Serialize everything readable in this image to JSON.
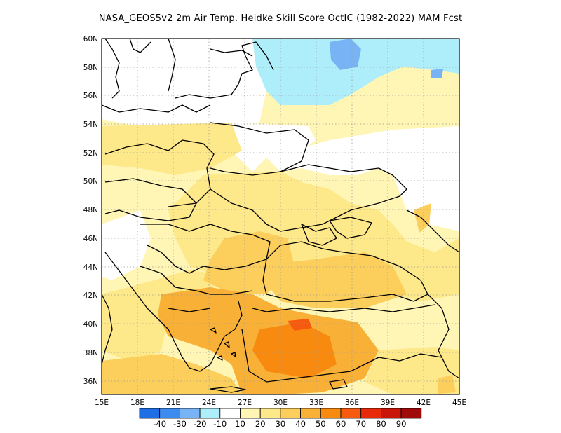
{
  "title": "NASA_GEOS5v2  2m Air Temp. Heidke Skill Score OctIC (1982-2022) MAM Fcst",
  "map": {
    "lon_ticks": [
      "15E",
      "18E",
      "21E",
      "24E",
      "27E",
      "30E",
      "33E",
      "36E",
      "39E",
      "42E",
      "45E"
    ],
    "lat_ticks": [
      "36N",
      "38N",
      "40N",
      "42N",
      "44N",
      "46N",
      "48N",
      "50N",
      "52N",
      "54N",
      "56N",
      "58N",
      "60N"
    ],
    "lon_range": [
      15,
      45
    ],
    "lat_range": [
      35,
      60
    ],
    "grid": true
  },
  "colorbar": {
    "colors": [
      "#1e6ee6",
      "#3c8cf0",
      "#78b4f5",
      "#aeeefa",
      "#ffffff",
      "#fff5b4",
      "#fde88a",
      "#fccf5c",
      "#f9b036",
      "#f88a10",
      "#f65a0f",
      "#e82a0a",
      "#c8160a",
      "#a00a0a"
    ],
    "labels": [
      "-40",
      "-30",
      "-20",
      "-10",
      "10",
      "20",
      "30",
      "40",
      "50",
      "60",
      "70",
      "80",
      "90"
    ]
  }
}
